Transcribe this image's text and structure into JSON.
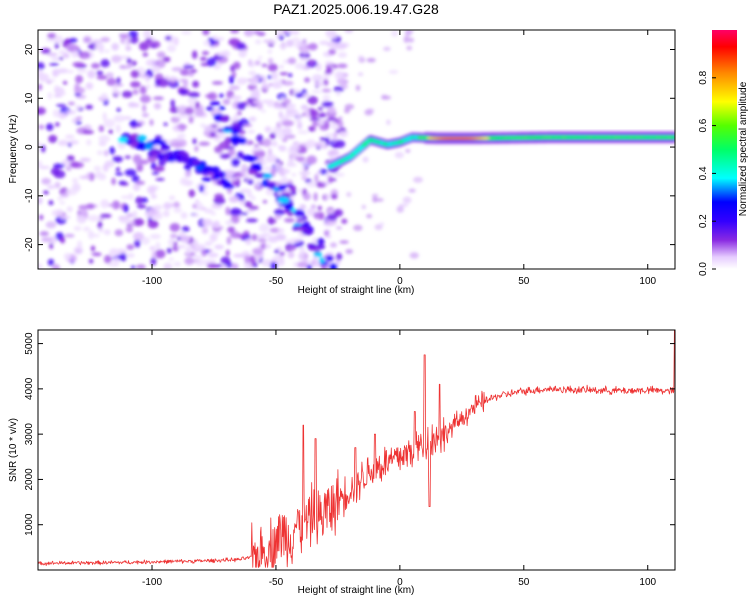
{
  "figure_title": "PAZ1.2025.006.19.47.G28",
  "chart_data": [
    {
      "type": "heatmap",
      "title": "",
      "xlabel": "Height of straight line (km)",
      "ylabel": "Frequency (Hz)",
      "xlim": [
        -146,
        111
      ],
      "ylim": [
        -25,
        24
      ],
      "xticks": [
        -100,
        -50,
        0,
        50,
        100
      ],
      "yticks": [
        -20,
        -10,
        0,
        10,
        20
      ],
      "colorbar": {
        "label": "Normalized spectral amplitude",
        "range": [
          0,
          1
        ],
        "ticks": [
          "0.0",
          "0.2",
          "0.4",
          "0.6",
          "0.8"
        ],
        "colormap": [
          "#ffffff",
          "#e6ccff",
          "#8a2be2",
          "#3300ff",
          "#0000ff",
          "#00ffff",
          "#00ff66",
          "#55ff00",
          "#ffff00",
          "#ff8800",
          "#ff0000",
          "#ff0066"
        ]
      },
      "features": {
        "noise_region_x": [
          -146,
          -22
        ],
        "carrier_track": [
          {
            "x": -28,
            "y": -4
          },
          {
            "x": -20,
            "y": -2
          },
          {
            "x": -12,
            "y": 1.5
          },
          {
            "x": -5,
            "y": 0.5
          },
          {
            "x": 0,
            "y": 1
          },
          {
            "x": 5,
            "y": 2
          },
          {
            "x": 15,
            "y": 1.8
          },
          {
            "x": 30,
            "y": 1.8
          },
          {
            "x": 60,
            "y": 2
          },
          {
            "x": 111,
            "y": 2
          }
        ],
        "descending_ridges": [
          {
            "from": {
              "x": -112,
              "y": 3
            },
            "to": {
              "x": -70,
              "y": -7
            }
          },
          {
            "from": {
              "x": -75,
              "y": 8
            },
            "to": {
              "x": -28,
              "y": -24
            }
          }
        ]
      }
    },
    {
      "type": "line",
      "title": "",
      "xlabel": "Height of straight line (km)",
      "ylabel": "SNR (10 * v/v)",
      "xlim": [
        -146,
        111
      ],
      "ylim": [
        0,
        5300
      ],
      "xticks": [
        -100,
        -50,
        0,
        50,
        100
      ],
      "yticks": [
        1000,
        2000,
        3000,
        4000,
        5000
      ],
      "line_color": "#ee3333",
      "series": [
        {
          "x": [
            -146,
            -120,
            -100,
            -80,
            -65,
            -58,
            -52,
            -48,
            -45,
            -42,
            -39,
            -36,
            -33,
            -30,
            -27,
            -24,
            -20,
            -16,
            -12,
            -8,
            -4,
            0,
            4,
            7,
            10,
            12,
            14,
            18,
            22,
            26,
            30,
            35,
            40,
            50,
            60,
            70,
            80,
            90,
            100,
            111
          ],
          "y": [
            150,
            160,
            180,
            200,
            230,
            300,
            500,
            800,
            700,
            1000,
            900,
            1200,
            1100,
            1300,
            1400,
            1600,
            1800,
            2000,
            2200,
            2300,
            2400,
            2500,
            2600,
            2700,
            2800,
            2850,
            2900,
            3000,
            3200,
            3400,
            3600,
            3750,
            3850,
            3950,
            4000,
            3980,
            3970,
            3960,
            3970,
            3950
          ],
          "spikes": [
            {
              "x": -39,
              "y": 3200
            },
            {
              "x": -34,
              "y": 2900
            },
            {
              "x": -18,
              "y": 2700
            },
            {
              "x": -10,
              "y": 3000
            },
            {
              "x": 6,
              "y": 3500
            },
            {
              "x": 10,
              "y": 4750
            },
            {
              "x": 12,
              "y": 1400
            },
            {
              "x": 16,
              "y": 4100
            },
            {
              "x": 111,
              "y": 5300
            }
          ]
        }
      ]
    }
  ]
}
